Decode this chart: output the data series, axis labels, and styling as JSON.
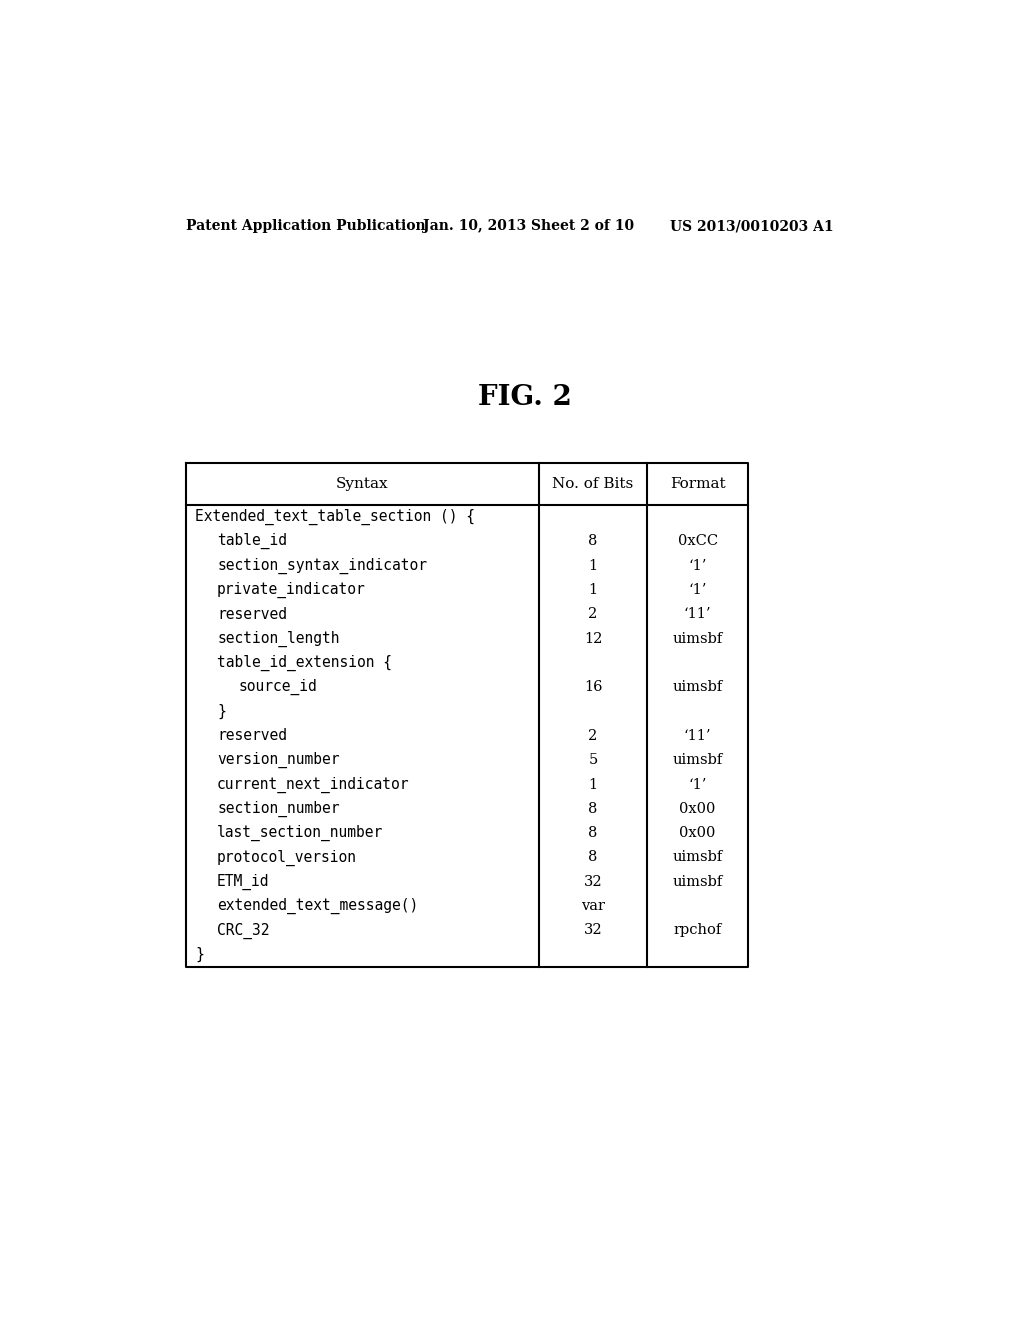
{
  "header_text": "Patent Application Publication",
  "header_date": "Jan. 10, 2013",
  "header_sheet": "Sheet 2 of 10",
  "header_patent": "US 2013/0010203 A1",
  "fig_label": "FIG. 2",
  "table": {
    "col_headers": [
      "Syntax",
      "No. of Bits",
      "Format"
    ],
    "rows": [
      {
        "syntax": "Extended_text_table_section () {",
        "indent": 0,
        "bits": "",
        "format": ""
      },
      {
        "syntax": "table_id",
        "indent": 1,
        "bits": "8",
        "format": "0xCC"
      },
      {
        "syntax": "section_syntax_indicator",
        "indent": 1,
        "bits": "1",
        "format": "‘1’"
      },
      {
        "syntax": "private_indicator",
        "indent": 1,
        "bits": "1",
        "format": "‘1’"
      },
      {
        "syntax": "reserved",
        "indent": 1,
        "bits": "2",
        "format": "‘11’"
      },
      {
        "syntax": "section_length",
        "indent": 1,
        "bits": "12",
        "format": "uimsbf"
      },
      {
        "syntax": "table_id_extension {",
        "indent": 1,
        "bits": "",
        "format": ""
      },
      {
        "syntax": "source_id",
        "indent": 2,
        "bits": "16",
        "format": "uimsbf"
      },
      {
        "syntax": "}",
        "indent": 1,
        "bits": "",
        "format": ""
      },
      {
        "syntax": "reserved",
        "indent": 1,
        "bits": "2",
        "format": "‘11’"
      },
      {
        "syntax": "version_number",
        "indent": 1,
        "bits": "5",
        "format": "uimsbf"
      },
      {
        "syntax": "current_next_indicator",
        "indent": 1,
        "bits": "1",
        "format": "‘1’"
      },
      {
        "syntax": "section_number",
        "indent": 1,
        "bits": "8",
        "format": "0x00"
      },
      {
        "syntax": "last_section_number",
        "indent": 1,
        "bits": "8",
        "format": "0x00"
      },
      {
        "syntax": "protocol_version",
        "indent": 1,
        "bits": "8",
        "format": "uimsbf"
      },
      {
        "syntax": "ETM_id",
        "indent": 1,
        "bits": "32",
        "format": "uimsbf"
      },
      {
        "syntax": "extended_text_message()",
        "indent": 1,
        "bits": "var",
        "format": ""
      },
      {
        "syntax": "CRC_32",
        "indent": 1,
        "bits": "32",
        "format": "rpchof"
      },
      {
        "syntax": "}",
        "indent": 0,
        "bits": "",
        "format": ""
      }
    ]
  },
  "bg_color": "#ffffff",
  "table_border_color": "#000000",
  "text_color": "#000000",
  "header_font_size": 10,
  "fig_font_size": 20,
  "table_header_font_size": 11,
  "table_row_font_size": 10.5
}
